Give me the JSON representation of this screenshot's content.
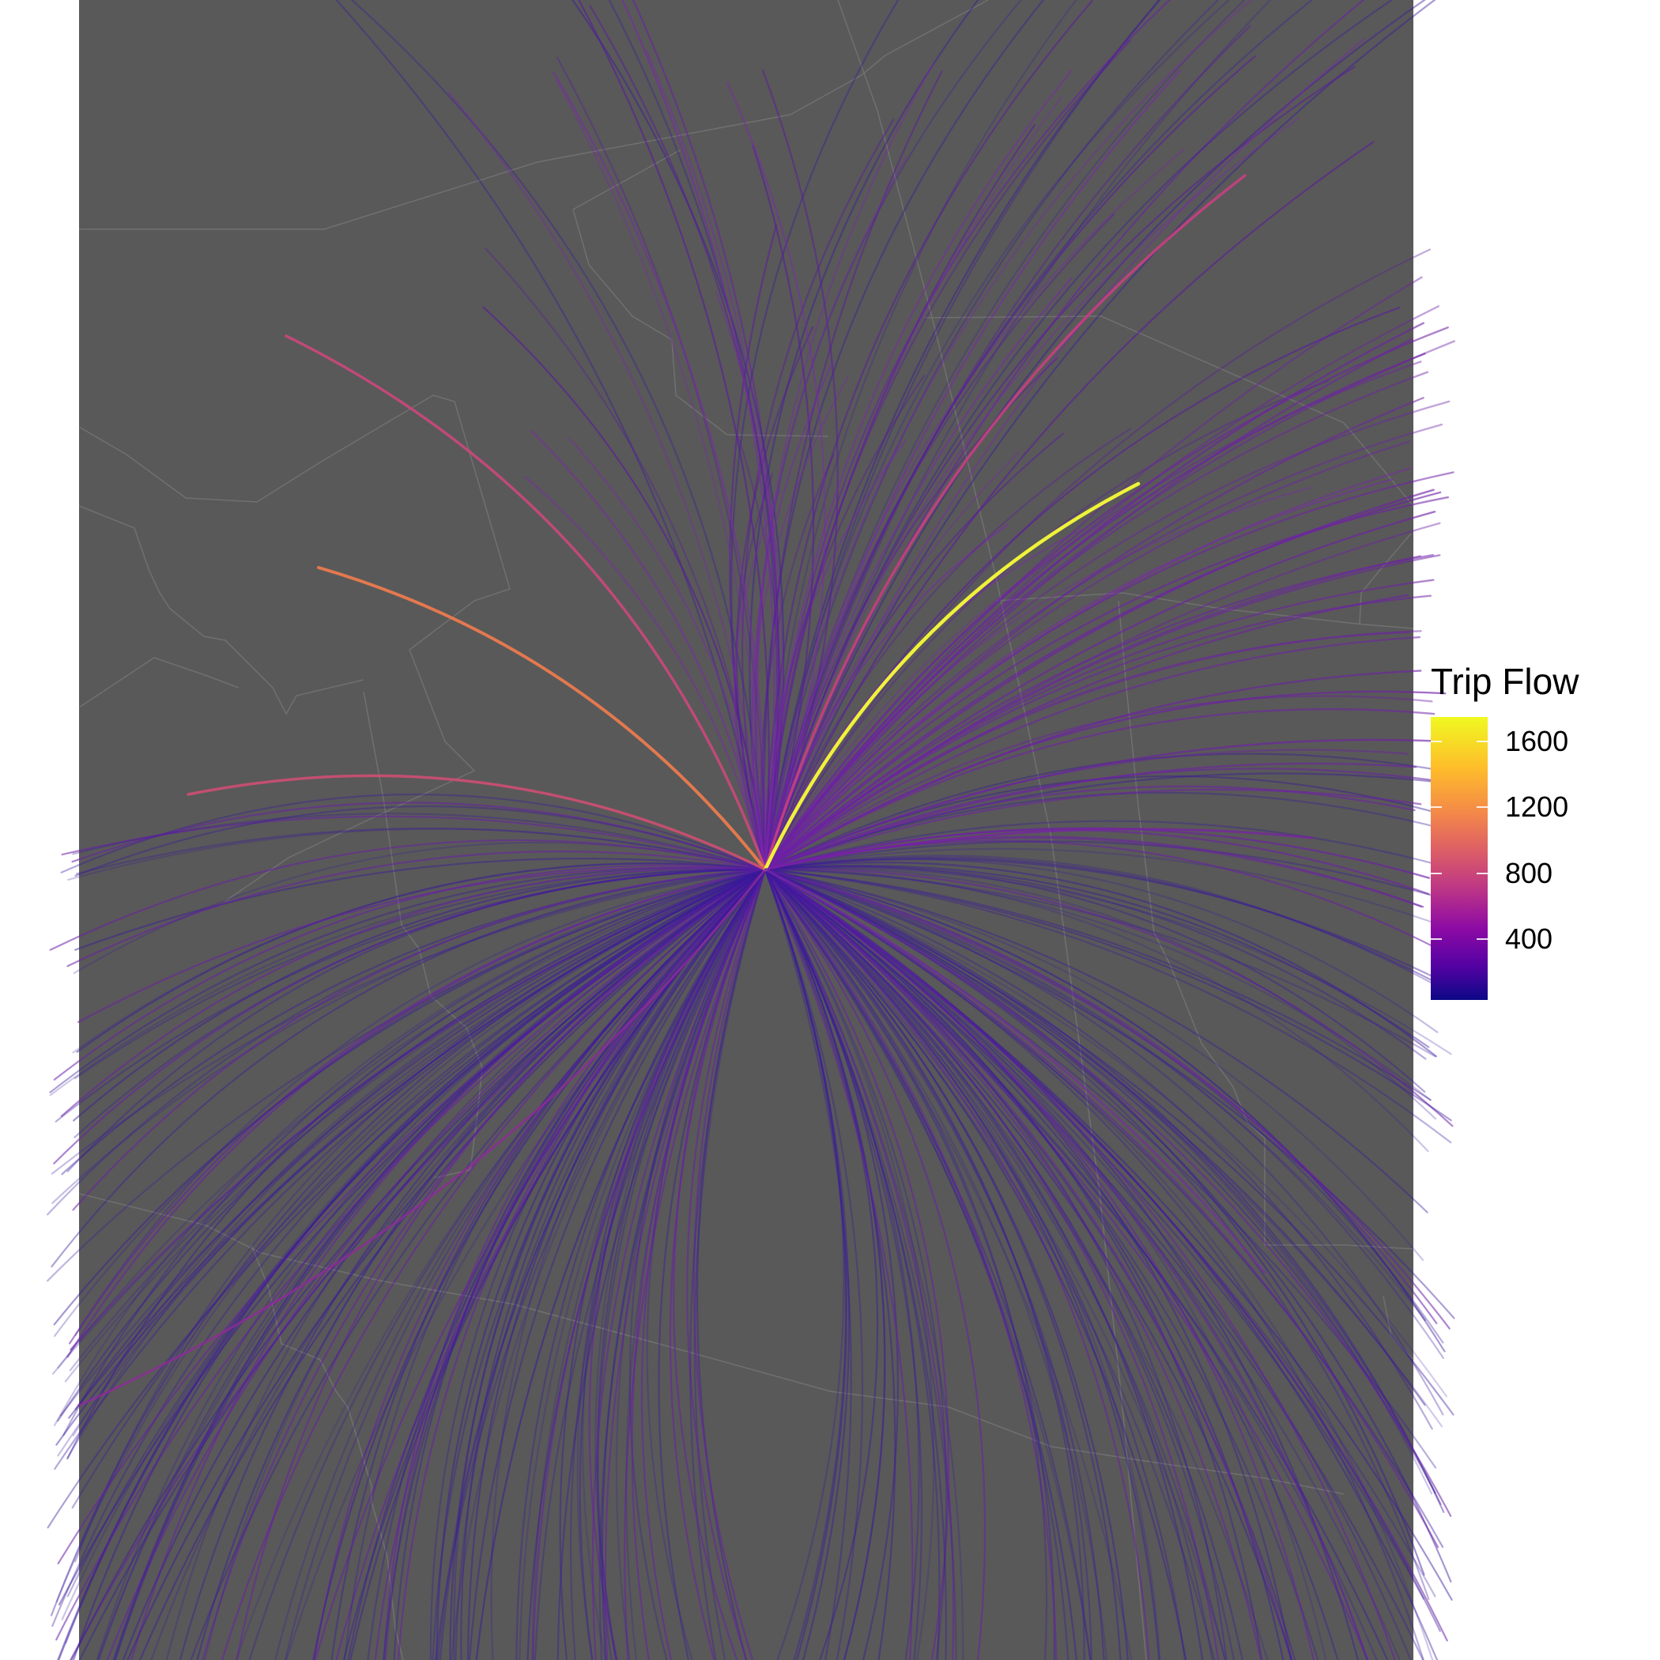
{
  "legend": {
    "title": "Trip Flow",
    "ticks": [
      {
        "value": 400,
        "label": "400"
      },
      {
        "value": 800,
        "label": "800"
      },
      {
        "value": 1200,
        "label": "1200"
      },
      {
        "value": 1600,
        "label": "1600"
      }
    ],
    "scale_min": 30,
    "scale_max": 1750,
    "palette": "plasma"
  },
  "colors": {
    "map_background": "#595959",
    "boundary_lines": "#707070",
    "page_background": "#ffffff"
  }
}
